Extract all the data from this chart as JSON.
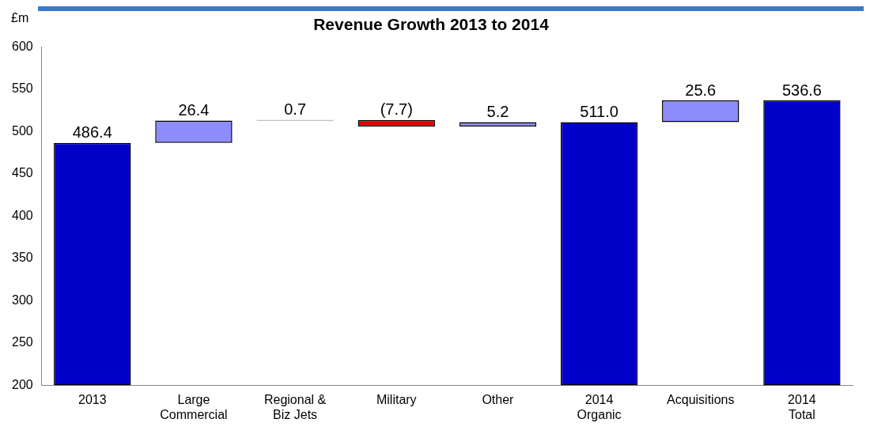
{
  "chart_data": {
    "type": "bar",
    "title": "Revenue Growth 2013 to 2014",
    "ylabel": "£m",
    "categories": [
      "2013",
      "Large Commercial",
      "Regional & Biz Jets",
      "Military",
      "Other",
      "2014 Organic",
      "Acquisitions",
      "2014 Total"
    ],
    "values": [
      486.4,
      26.4,
      0.7,
      -7.7,
      5.2,
      511.0,
      25.6,
      536.6
    ],
    "base": [
      null,
      486.4,
      512.8,
      513.5,
      505.8,
      null,
      511.0,
      null
    ],
    "colors": [
      "#0000c8",
      "#8c8cff",
      "#000000",
      "#e00000",
      "#8c8cff",
      "#0000c8",
      "#8c8cff",
      "#0000c8"
    ],
    "value_labels": [
      "486.4",
      "26.4",
      "0.7",
      "(7.7)",
      "5.2",
      "511.0",
      "25.6",
      "536.6"
    ],
    "ylim": [
      200,
      600
    ],
    "yticks": [
      200,
      250,
      300,
      350,
      400,
      450,
      500,
      550,
      600
    ],
    "grid": false,
    "legend": false
  }
}
